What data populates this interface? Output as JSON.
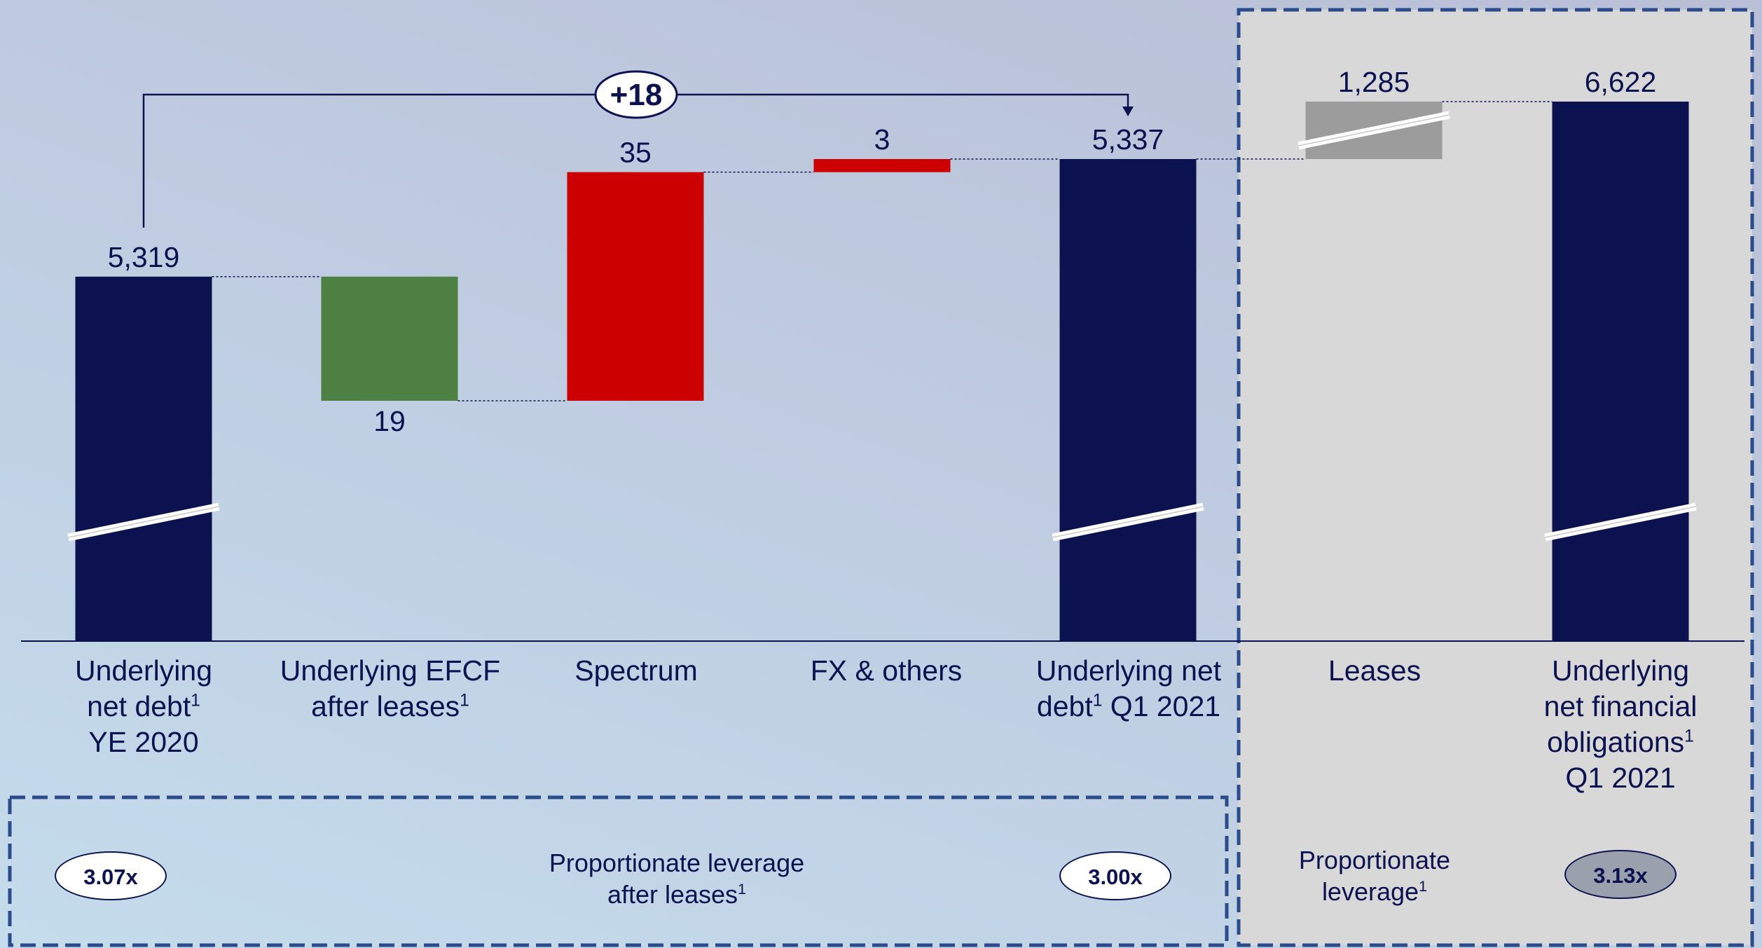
{
  "chart_data": {
    "type": "waterfall",
    "title": "",
    "categories": [
      {
        "pre": "Underlying",
        "line2": "net debt",
        "sup": "1",
        "post": "YE 2020"
      },
      {
        "pre": "Underlying EFCF",
        "line2": "after leases",
        "sup": "1",
        "post": ""
      },
      {
        "pre": "Spectrum",
        "line2": "",
        "sup": "",
        "post": ""
      },
      {
        "pre": "FX & others",
        "line2": "",
        "sup": "",
        "post": ""
      },
      {
        "pre": "Underlying net",
        "line2": "debt",
        "sup": "1",
        "post": " Q1 2021"
      },
      {
        "pre": "Leases",
        "line2": "",
        "sup": "",
        "post": ""
      },
      {
        "pre": "Underlying",
        "line2": "net financial\nobligations",
        "sup": "1",
        "post": "Q1 2021"
      }
    ],
    "bars": [
      {
        "kind": "total",
        "label": "5,319",
        "start": 0,
        "end": 5319,
        "color": "#0c1250",
        "label_pos": "top",
        "broken": true
      },
      {
        "kind": "decrease",
        "label": "19",
        "start": 5319,
        "end": 5300,
        "color": "#4f8043",
        "label_pos": "bottom",
        "broken": false
      },
      {
        "kind": "increase",
        "label": "35",
        "start": 5300,
        "end": 5335,
        "color": "#cc0000",
        "label_pos": "top",
        "broken": false
      },
      {
        "kind": "increase",
        "label": "3",
        "start": 5335,
        "end": 5337,
        "color": "#cc0000",
        "label_pos": "top",
        "broken": false
      },
      {
        "kind": "total",
        "label": "5,337",
        "start": 0,
        "end": 5337,
        "color": "#0c1250",
        "label_pos": "top",
        "broken": true
      },
      {
        "kind": "increase",
        "label": "1,285",
        "start": 5337,
        "end": 6622,
        "color": "#9c9c9c",
        "label_pos": "top",
        "broken": true
      },
      {
        "kind": "total",
        "label": "6,622",
        "start": 0,
        "end": 6622,
        "color": "#0c1250",
        "label_pos": "top",
        "broken": true
      }
    ],
    "change_bracket": {
      "from_index": 0,
      "to_index": 4,
      "label": "+18"
    }
  },
  "leverage": {
    "left_caption": "Proportionate leverage\nafter leases",
    "left_caption_sup": "1",
    "right_caption": "Proportionate\nleverage",
    "right_caption_sup": "1",
    "pills": [
      "3.07x",
      "3.00x",
      "3.13x"
    ]
  },
  "colors": {
    "navy": "#0c1250",
    "green": "#4f8043",
    "red": "#cc0000",
    "grey": "#9c9c9c",
    "panel": "#d8d8d8",
    "frame": "#2b4c8c"
  }
}
